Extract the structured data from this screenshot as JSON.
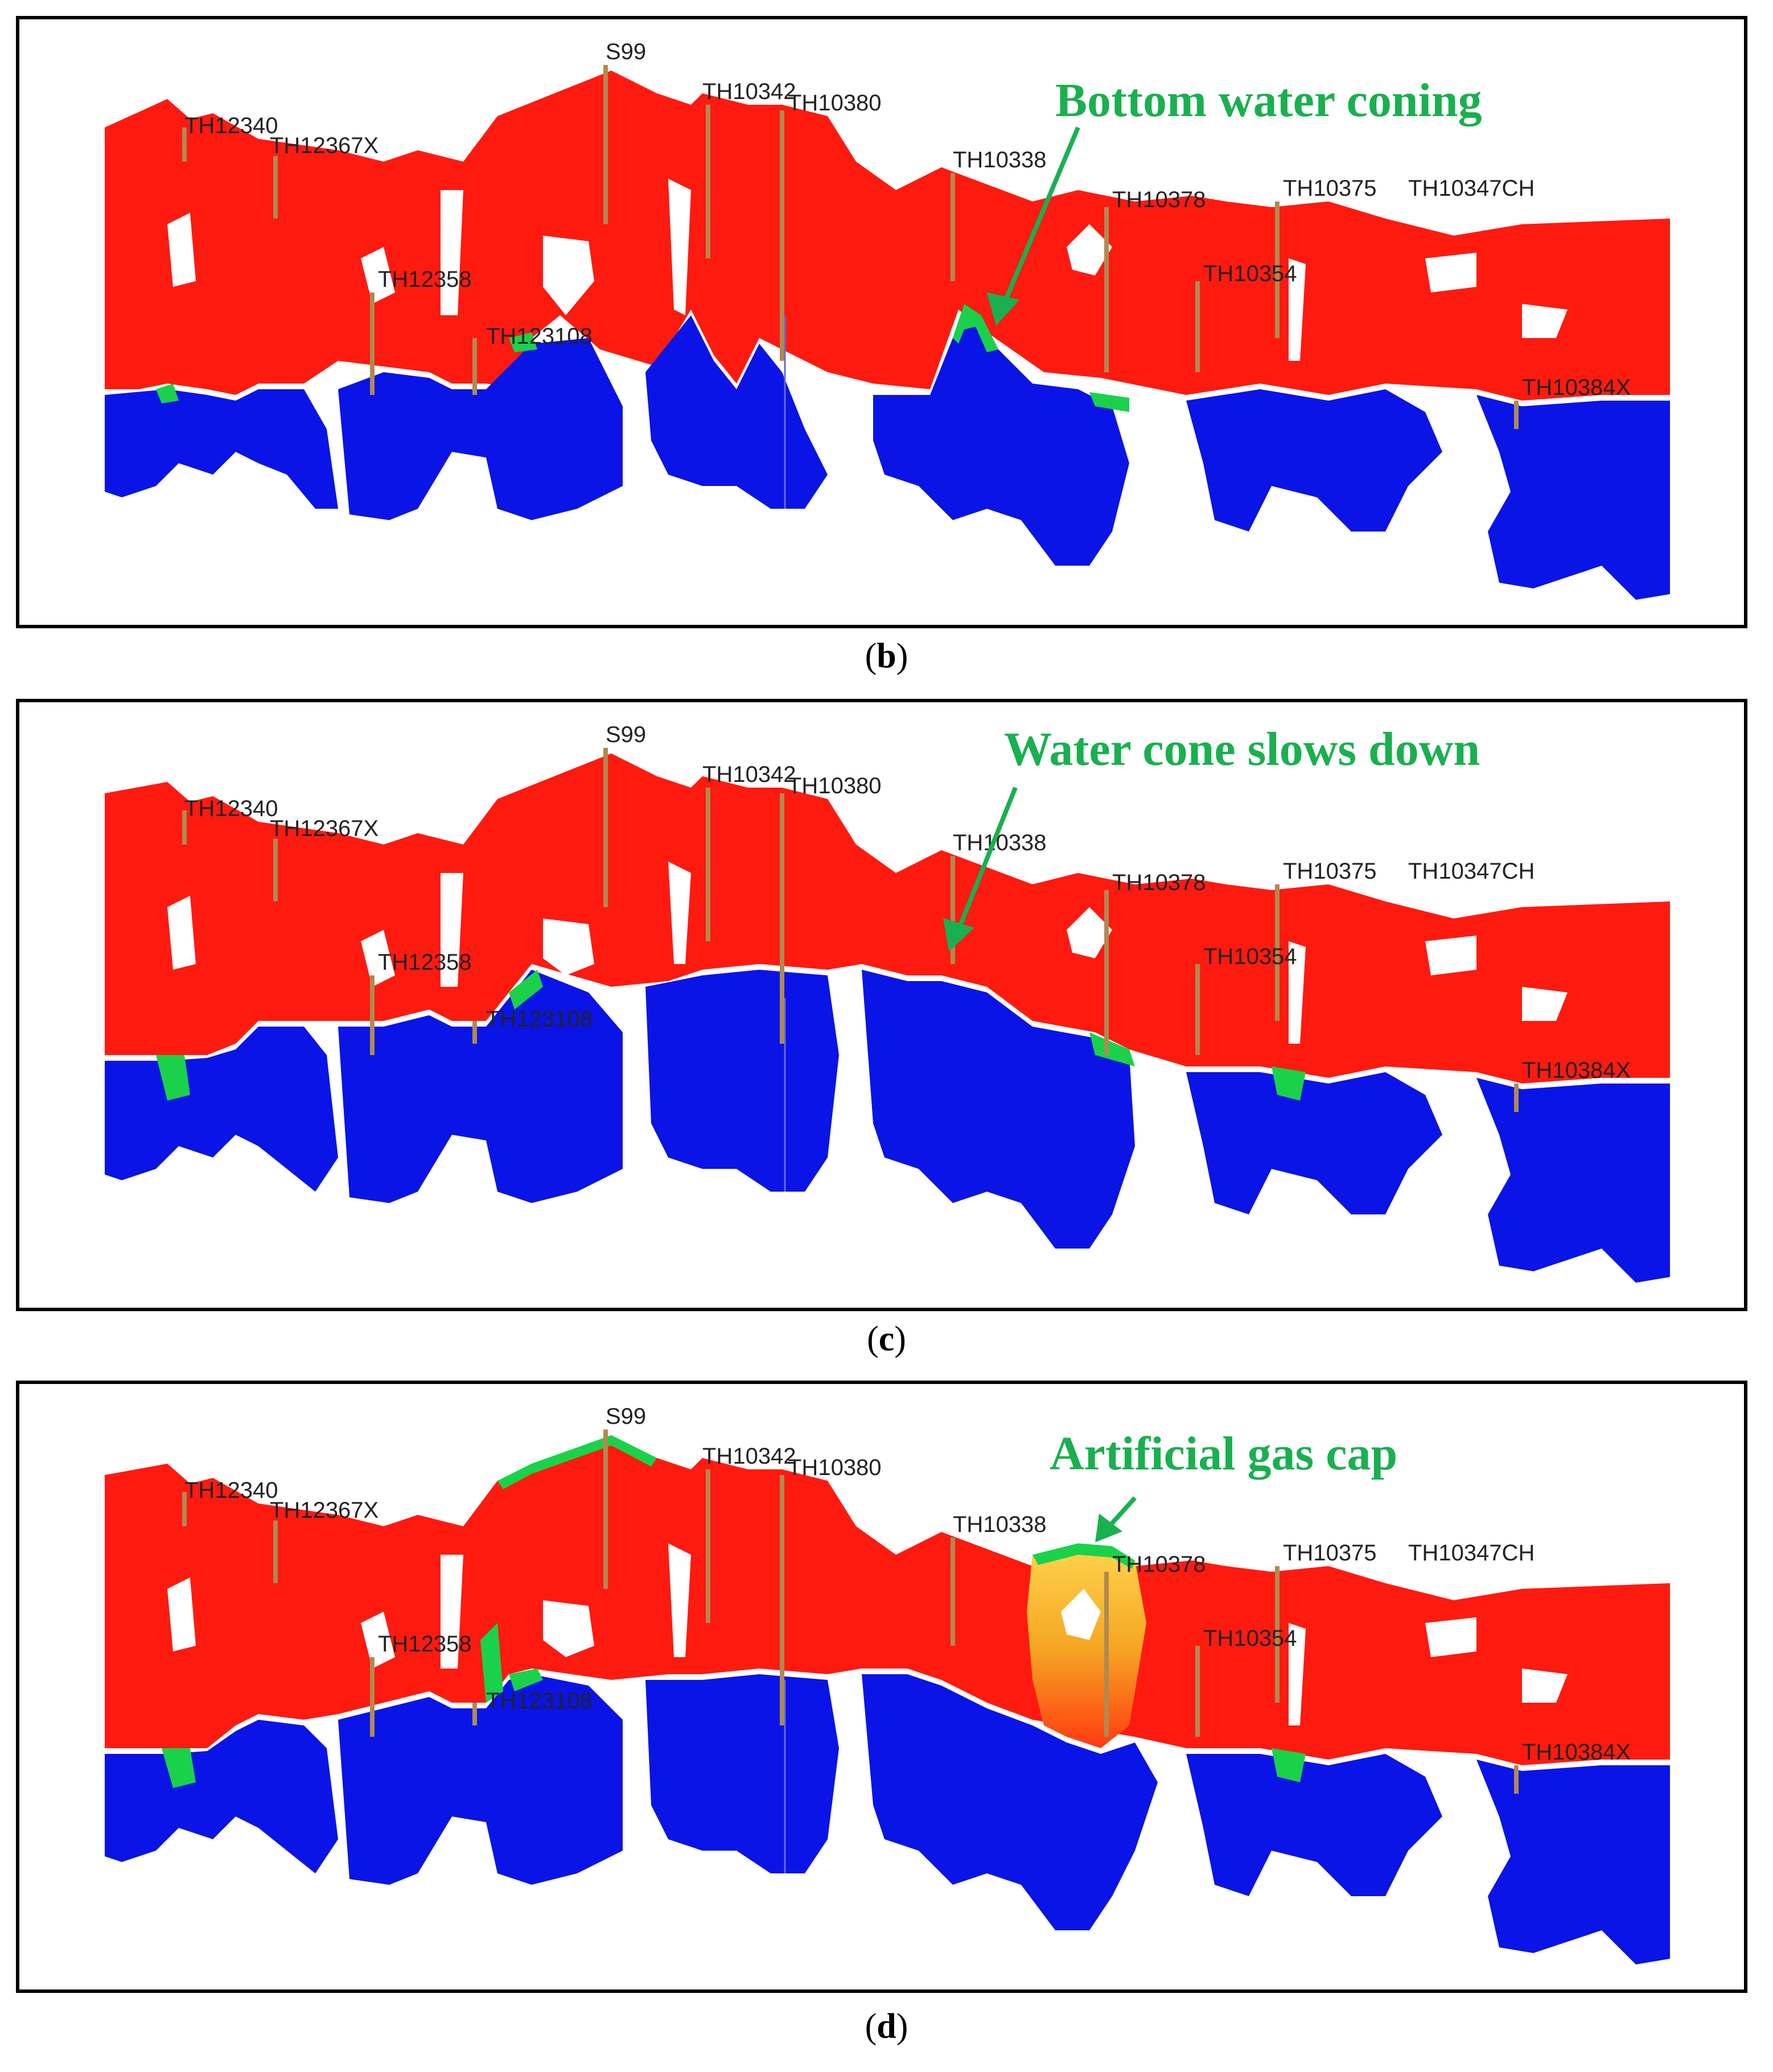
{
  "colors": {
    "oil": "#ff1a10",
    "water": "#0a14e6",
    "transition_green": "#19d24a",
    "gas": "#f5a623",
    "callout": "#19b04f",
    "frame": "#000000"
  },
  "panels": [
    {
      "id": "b",
      "caption_open": "(",
      "caption_letter": "b",
      "caption_close": ")",
      "callout": "Bottom water coning",
      "wells": [
        "TH12340",
        "TH12367X",
        "TH12358",
        "TH123108",
        "S99",
        "TH10342",
        "TH10380",
        "TH10338",
        "TH10378",
        "TH10354",
        "TH10375",
        "TH10347CH",
        "TH10384X"
      ]
    },
    {
      "id": "c",
      "caption_open": "(",
      "caption_letter": "c",
      "caption_close": ")",
      "callout": "Water cone slows down",
      "wells": [
        "TH12340",
        "TH12367X",
        "TH12358",
        "TH123108",
        "S99",
        "TH10342",
        "TH10380",
        "TH10338",
        "TH10378",
        "TH10354",
        "TH10375",
        "TH10347CH",
        "TH10384X"
      ]
    },
    {
      "id": "d",
      "caption_open": "(",
      "caption_letter": "d",
      "caption_close": ")",
      "callout": "Artificial gas cap",
      "wells": [
        "TH12340",
        "TH12367X",
        "TH12358",
        "TH123108",
        "S99",
        "TH10342",
        "TH10380",
        "TH10338",
        "TH10378",
        "TH10354",
        "TH10375",
        "TH10347CH",
        "TH10384X"
      ]
    }
  ]
}
